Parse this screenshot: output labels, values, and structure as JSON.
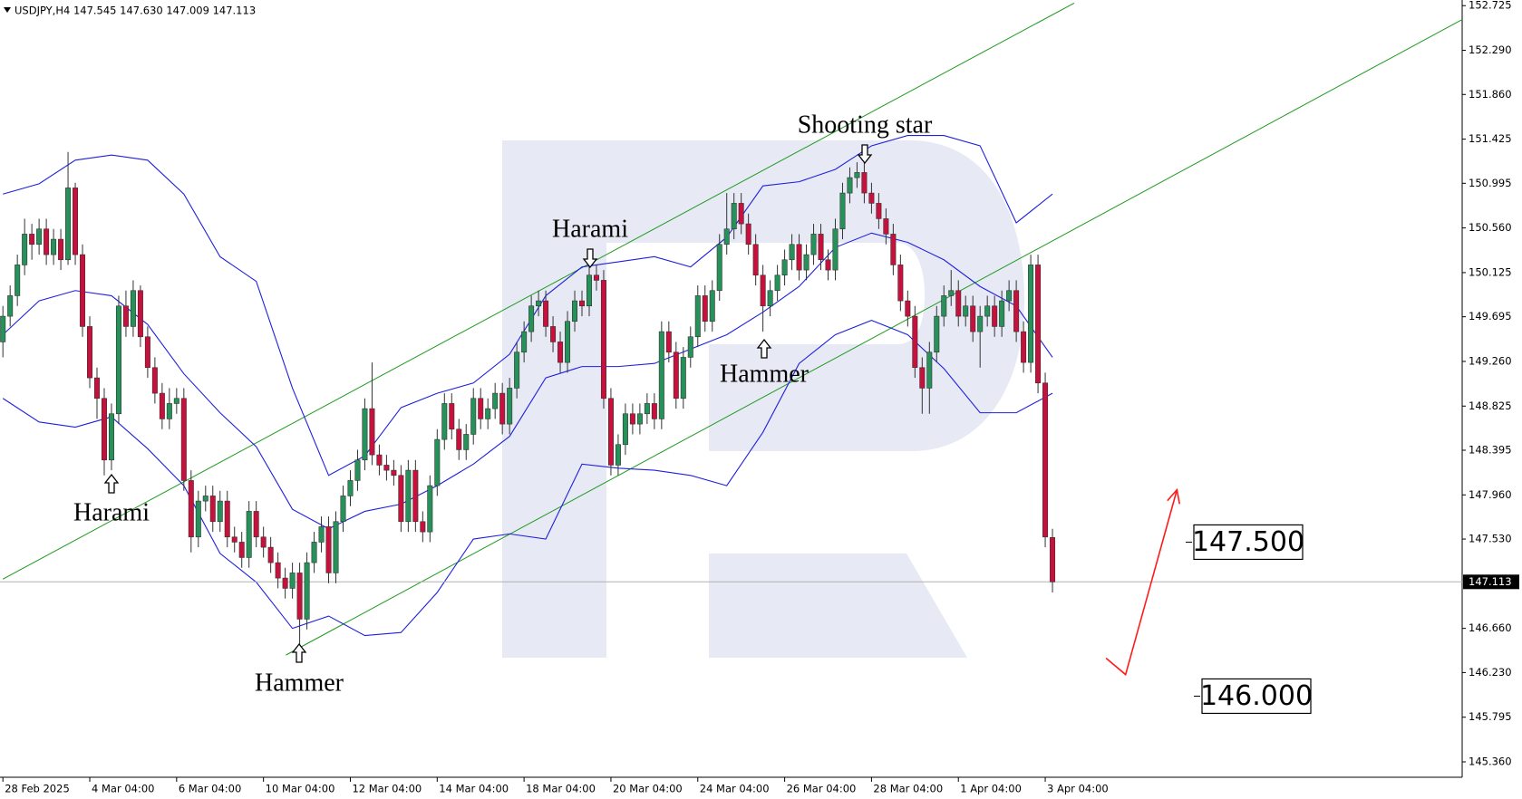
{
  "chart_data": {
    "type": "candlestick",
    "title": "USDJPY,H4  147.545 147.630 147.009 147.113",
    "xlim": [
      -0.4,
      201.6
    ],
    "ylim": [
      145.21,
      152.78
    ],
    "xticks": [
      {
        "value": 0,
        "label": "28 Feb 2025"
      },
      {
        "value": 12,
        "label": "4 Mar 04:00"
      },
      {
        "value": 24,
        "label": "6 Mar 04:00"
      },
      {
        "value": 36,
        "label": "10 Mar 04:00"
      },
      {
        "value": 48,
        "label": "12 Mar 04:00"
      },
      {
        "value": 60,
        "label": "14 Mar 04:00"
      },
      {
        "value": 72,
        "label": "18 Mar 04:00"
      },
      {
        "value": 84,
        "label": "20 Mar 04:00"
      },
      {
        "value": 96,
        "label": "24 Mar 04:00"
      },
      {
        "value": 108,
        "label": "26 Mar 04:00"
      },
      {
        "value": 120,
        "label": "28 Mar 04:00"
      },
      {
        "value": 132,
        "label": "1 Apr 04:00"
      },
      {
        "value": 144,
        "label": "3 Apr 04:00"
      }
    ],
    "yticks": [
      152.725,
      {
        "value": 152.29,
        "label": "152.290"
      },
      {
        "value": 151.86,
        "label": "151.860"
      },
      151.425,
      150.995,
      {
        "value": 150.56,
        "label": "150.560"
      },
      150.125,
      149.695,
      {
        "value": 149.26,
        "label": "149.260"
      },
      148.825,
      148.395,
      {
        "value": 147.96,
        "label": "147.960"
      },
      {
        "value": 147.53,
        "label": "147.530"
      },
      {
        "value": 146.66,
        "label": "146.660"
      },
      {
        "value": 146.23,
        "label": "146.230"
      },
      145.795,
      {
        "value": 145.36,
        "label": "145.360"
      }
    ],
    "bull_color": "#27915a",
    "bear_color": "#c8103c",
    "open": [
      149.45,
      149.7,
      149.9,
      150.2,
      150.5,
      150.4,
      150.55,
      150.3,
      150.45,
      150.25,
      150.95,
      150.3,
      149.6,
      149.1,
      148.9,
      148.3,
      148.75,
      149.8,
      149.6,
      149.95,
      149.5,
      149.2,
      148.95,
      148.7,
      148.85,
      148.9,
      148.1,
      147.55,
      147.9,
      147.95,
      147.7,
      147.9,
      147.55,
      147.5,
      147.35,
      147.8,
      147.55,
      147.45,
      147.3,
      147.15,
      147.05,
      147.2,
      146.75,
      147.3,
      147.5,
      147.65,
      147.2,
      147.7,
      147.95,
      148.1,
      148.3,
      148.8,
      148.35,
      148.25,
      148.2,
      148.15,
      147.7,
      148.2,
      147.7,
      147.6,
      148.05,
      148.5,
      148.85,
      148.6,
      148.4,
      148.55,
      148.9,
      148.7,
      148.8,
      148.95,
      148.65,
      149.0,
      149.35,
      149.55,
      149.8,
      149.85,
      149.6,
      149.45,
      149.25,
      149.65,
      149.85,
      149.8,
      150.1,
      150.05,
      148.9,
      148.25,
      148.45,
      148.75,
      148.65,
      148.75,
      148.85,
      148.7,
      149.55,
      149.35,
      148.9,
      149.3,
      149.5,
      149.9,
      149.65,
      149.95,
      150.4,
      150.55,
      150.8,
      150.6,
      150.4,
      150.1,
      149.8,
      149.95,
      150.1,
      150.25,
      150.4,
      150.15,
      150.3,
      150.5,
      150.25,
      150.15,
      150.55,
      150.9,
      151.05,
      151.1,
      150.9,
      150.8,
      150.65,
      150.5,
      150.2,
      149.85,
      149.7,
      149.2,
      149.0,
      149.35,
      149.7,
      149.9,
      149.95,
      149.7,
      149.8,
      149.55,
      149.7,
      149.8,
      149.6,
      149.85,
      149.95,
      149.55,
      149.25,
      150.2,
      149.05,
      147.545
    ],
    "high": [
      149.8,
      150.0,
      150.3,
      150.65,
      150.6,
      150.65,
      150.65,
      150.55,
      150.55,
      151.3,
      151.0,
      150.4,
      149.7,
      149.2,
      149.0,
      148.85,
      149.9,
      149.95,
      150.05,
      150.0,
      149.6,
      149.3,
      149.05,
      149.0,
      149.0,
      149.0,
      148.2,
      148.0,
      148.05,
      148.05,
      148.0,
      148.0,
      147.65,
      147.6,
      147.9,
      147.9,
      147.65,
      147.55,
      147.4,
      147.25,
      147.3,
      147.3,
      147.4,
      147.6,
      147.75,
      147.75,
      147.8,
      148.05,
      148.2,
      148.4,
      148.9,
      149.25,
      148.45,
      148.35,
      148.3,
      148.25,
      148.3,
      148.3,
      147.8,
      148.15,
      148.6,
      148.95,
      148.95,
      148.7,
      148.65,
      149.0,
      149.0,
      148.9,
      149.05,
      149.05,
      149.1,
      149.45,
      149.65,
      149.9,
      149.95,
      149.95,
      149.7,
      149.55,
      149.75,
      149.95,
      149.95,
      150.2,
      150.2,
      150.15,
      149.0,
      148.55,
      148.85,
      148.85,
      148.85,
      148.95,
      148.95,
      149.65,
      149.65,
      149.45,
      149.4,
      149.6,
      150.0,
      150.0,
      150.05,
      150.5,
      150.9,
      150.9,
      150.9,
      150.7,
      150.5,
      150.2,
      150.05,
      150.2,
      150.35,
      150.5,
      150.5,
      150.4,
      150.6,
      150.6,
      150.35,
      150.65,
      151.0,
      151.15,
      151.2,
      151.25,
      151.0,
      150.9,
      150.75,
      150.6,
      150.3,
      149.95,
      149.8,
      149.3,
      149.45,
      149.8,
      150.0,
      150.15,
      150.05,
      149.9,
      149.9,
      149.8,
      149.9,
      149.9,
      149.95,
      150.05,
      150.05,
      149.65,
      150.3,
      150.3,
      149.15,
      147.63
    ],
    "low": [
      149.3,
      149.6,
      149.8,
      150.1,
      150.25,
      150.3,
      150.2,
      150.2,
      150.15,
      150.2,
      150.2,
      149.5,
      149.0,
      148.7,
      148.15,
      148.2,
      148.65,
      149.5,
      149.5,
      149.4,
      149.1,
      148.85,
      148.6,
      148.6,
      148.75,
      148.0,
      147.4,
      147.45,
      147.8,
      147.6,
      147.6,
      147.45,
      147.4,
      147.25,
      147.25,
      147.45,
      147.35,
      147.2,
      147.05,
      146.95,
      146.95,
      146.5,
      146.65,
      147.2,
      147.4,
      147.1,
      147.1,
      147.6,
      147.85,
      148.0,
      148.2,
      148.25,
      148.15,
      148.1,
      148.05,
      147.6,
      147.6,
      147.6,
      147.5,
      147.5,
      147.95,
      148.4,
      148.5,
      148.3,
      148.3,
      148.45,
      148.6,
      148.6,
      148.7,
      148.55,
      148.55,
      148.9,
      149.25,
      149.45,
      149.7,
      149.5,
      149.35,
      149.15,
      149.15,
      149.55,
      149.7,
      149.7,
      149.95,
      148.8,
      148.15,
      148.15,
      148.35,
      148.55,
      148.55,
      148.65,
      148.6,
      148.6,
      149.25,
      148.8,
      148.8,
      149.2,
      149.4,
      149.55,
      149.55,
      149.85,
      150.3,
      150.45,
      150.5,
      150.3,
      150.0,
      149.55,
      149.7,
      149.85,
      150.0,
      150.15,
      150.05,
      150.05,
      150.2,
      150.15,
      150.05,
      150.05,
      150.45,
      150.8,
      150.95,
      150.8,
      150.7,
      150.55,
      150.4,
      150.1,
      149.75,
      149.6,
      149.1,
      148.75,
      148.75,
      149.25,
      149.6,
      149.8,
      149.6,
      149.6,
      149.45,
      149.2,
      149.6,
      149.5,
      149.5,
      149.75,
      149.45,
      149.15,
      149.15,
      148.95,
      147.45,
      147.009
    ],
    "close": [
      149.7,
      149.9,
      150.2,
      150.5,
      150.4,
      150.55,
      150.3,
      150.45,
      150.25,
      150.95,
      150.3,
      149.6,
      149.1,
      148.9,
      148.3,
      148.75,
      149.8,
      149.6,
      149.95,
      149.5,
      149.2,
      148.95,
      148.7,
      148.85,
      148.9,
      148.1,
      147.55,
      147.9,
      147.95,
      147.7,
      147.9,
      147.55,
      147.5,
      147.35,
      147.8,
      147.55,
      147.45,
      147.3,
      147.15,
      147.05,
      147.2,
      146.75,
      147.3,
      147.5,
      147.65,
      147.2,
      147.7,
      147.95,
      148.1,
      148.3,
      148.8,
      148.35,
      148.25,
      148.2,
      148.15,
      147.7,
      148.2,
      147.7,
      147.6,
      148.05,
      148.5,
      148.85,
      148.6,
      148.4,
      148.55,
      148.9,
      148.7,
      148.8,
      148.95,
      148.65,
      149.0,
      149.35,
      149.55,
      149.8,
      149.85,
      149.6,
      149.45,
      149.25,
      149.65,
      149.85,
      149.8,
      150.1,
      150.05,
      148.9,
      148.25,
      148.45,
      148.75,
      148.65,
      148.75,
      148.85,
      148.7,
      149.55,
      149.35,
      148.9,
      149.3,
      149.5,
      149.9,
      149.65,
      149.95,
      150.4,
      150.55,
      150.8,
      150.6,
      150.4,
      150.1,
      149.8,
      149.95,
      150.1,
      150.25,
      150.4,
      150.15,
      150.3,
      150.5,
      150.25,
      150.15,
      150.55,
      150.9,
      151.05,
      151.1,
      150.9,
      150.8,
      150.65,
      150.5,
      150.2,
      149.85,
      149.7,
      149.2,
      149.0,
      149.35,
      149.7,
      149.9,
      149.95,
      149.7,
      149.8,
      149.55,
      149.7,
      149.8,
      149.6,
      149.85,
      149.95,
      149.55,
      149.25,
      150.2,
      149.05,
      147.55,
      147.113
    ],
    "current_price": 147.113,
    "bands": {
      "color": "#2020dd",
      "x": [
        0,
        5,
        10,
        15,
        20,
        25,
        30,
        35,
        40,
        45,
        50,
        55,
        60,
        65,
        70,
        75,
        80,
        85,
        90,
        95,
        100,
        105,
        110,
        115,
        120,
        125,
        130,
        135,
        140,
        145
      ],
      "upper": [
        150.89,
        150.99,
        151.22,
        151.27,
        151.22,
        150.89,
        150.28,
        150.04,
        149.0,
        148.15,
        148.34,
        148.81,
        148.95,
        149.05,
        149.33,
        149.9,
        150.18,
        150.23,
        150.28,
        150.18,
        150.47,
        150.97,
        151.01,
        151.13,
        151.36,
        151.46,
        151.46,
        151.36,
        150.61,
        150.89
      ],
      "middle": [
        149.52,
        149.85,
        149.95,
        149.9,
        149.62,
        149.14,
        148.76,
        148.43,
        147.82,
        147.63,
        147.8,
        147.87,
        148.05,
        148.26,
        148.53,
        149.1,
        149.21,
        149.21,
        149.24,
        149.38,
        149.52,
        149.74,
        149.99,
        150.37,
        150.51,
        150.42,
        150.25,
        149.99,
        149.8,
        149.3
      ],
      "lower": [
        148.9,
        148.67,
        148.62,
        148.72,
        148.41,
        148.05,
        147.39,
        147.11,
        146.66,
        146.78,
        146.59,
        146.62,
        147.01,
        147.53,
        147.58,
        147.53,
        148.26,
        148.22,
        148.2,
        148.15,
        148.05,
        148.57,
        149.24,
        149.52,
        149.66,
        149.52,
        149.19,
        148.76,
        148.76,
        148.95
      ]
    },
    "trendlines": [
      {
        "color": "#1e9a1e",
        "x": [
          0,
          148
        ],
        "values": [
          147.14,
          152.75
        ]
      },
      {
        "color": "#1e9a1e",
        "x": [
          39.1,
          201.6
        ],
        "values": [
          146.4,
          152.59
        ]
      }
    ],
    "forecast": {
      "color": "#ff1a1a",
      "x": [
        152.4,
        155.1,
        162.2
      ],
      "values": [
        146.37,
        146.21,
        148.01
      ]
    },
    "targets": [
      {
        "value": 147.5,
        "label": "147.500"
      },
      {
        "value": 146,
        "label": "146.000"
      }
    ],
    "patterns": [
      "Harami",
      "Hammer",
      "Harami",
      "Hammer",
      "Shooting star"
    ]
  }
}
